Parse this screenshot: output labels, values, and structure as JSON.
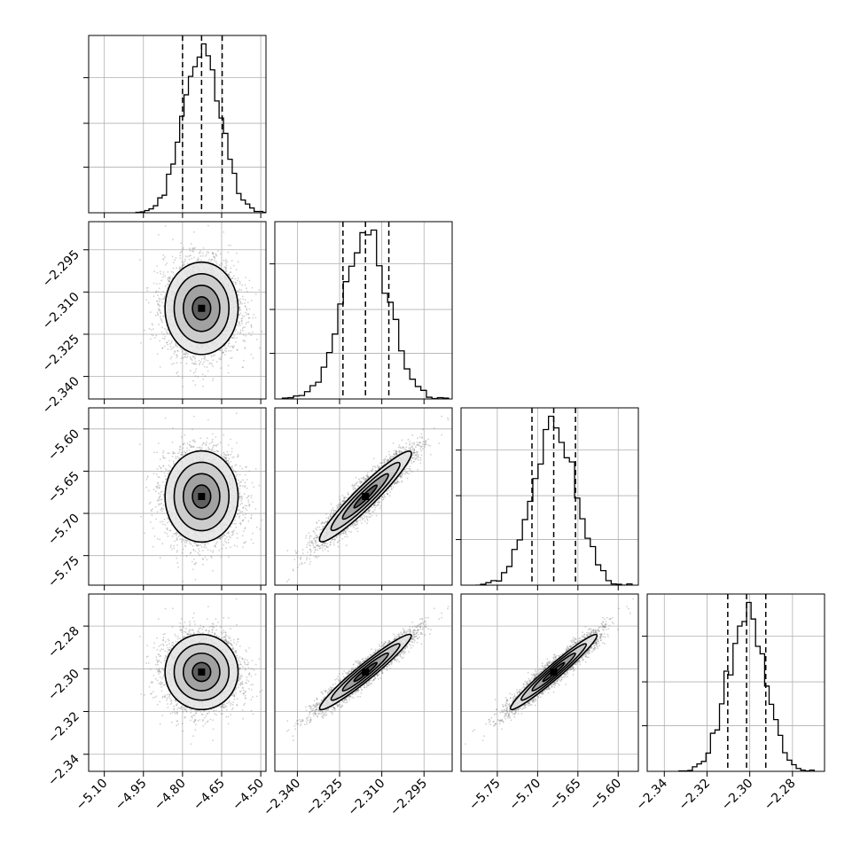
{
  "chart_data": {
    "type": "corner",
    "dims": 4,
    "grid": true,
    "axes": [
      {
        "range": [
          -5.16,
          -4.48
        ],
        "ticks": [
          -5.1,
          -4.95,
          -4.8,
          -4.65,
          -4.5
        ],
        "tick_labels": [
          "−5.10",
          "−4.95",
          "−4.80",
          "−4.65",
          "−4.50"
        ]
      },
      {
        "range": [
          -2.348,
          -2.285
        ],
        "ticks": [
          -2.34,
          -2.325,
          -2.31,
          -2.295
        ],
        "tick_labels": [
          "−2.340",
          "−2.325",
          "−2.310",
          "−2.295"
        ]
      },
      {
        "range": [
          -5.795,
          -5.575
        ],
        "ticks": [
          -5.75,
          -5.7,
          -5.65,
          -5.6
        ],
        "tick_labels": [
          "−5.75",
          "−5.70",
          "−5.65",
          "−5.60"
        ]
      },
      {
        "range": [
          -2.348,
          -2.265
        ],
        "ticks": [
          -2.34,
          -2.32,
          -2.3,
          -2.28
        ],
        "tick_labels": [
          "−2.34",
          "−2.32",
          "−2.30",
          "−2.28"
        ]
      }
    ],
    "row_tick_labels": [
      null,
      {
        "ticks": [
          -2.295,
          -2.31,
          -2.325,
          -2.34
        ],
        "tick_labels": [
          "−2.295",
          "−2.310",
          "−2.325",
          "−2.340"
        ],
        "range": [
          -2.348,
          -2.285
        ]
      },
      {
        "ticks": [
          -5.6,
          -5.65,
          -5.7,
          -5.75
        ],
        "tick_labels": [
          "−5.60",
          "−5.65",
          "−5.70",
          "−5.75"
        ],
        "range": [
          -5.785,
          -5.575
        ]
      },
      {
        "ticks": [
          -2.28,
          -2.3,
          -2.32,
          -2.34
        ],
        "tick_labels": [
          "−2.28",
          "−2.30",
          "−2.32",
          "−2.34"
        ],
        "range": [
          -2.348,
          -2.265
        ]
      }
    ],
    "marginals": [
      {
        "mean": -4.727,
        "sd": 0.07,
        "quantiles": [
          -4.8,
          -4.727,
          -4.648
        ],
        "bins": 30
      },
      {
        "mean": -2.3158,
        "sd": 0.0082,
        "quantiles": [
          -2.3238,
          -2.3158,
          -2.3075
        ],
        "bins": 30
      },
      {
        "mean": -5.68,
        "sd": 0.027,
        "quantiles": [
          -5.707,
          -5.68,
          -5.653
        ],
        "bins": 30
      },
      {
        "mean": -2.3015,
        "sd": 0.0088,
        "quantiles": [
          -2.3103,
          -2.3015,
          -2.2925
        ],
        "bins": 30
      }
    ],
    "correlations": {
      "1-0": 0.0,
      "2-0": 0.0,
      "3-0": 0.0,
      "2-1": 0.93,
      "3-1": 0.95,
      "3-2": 0.96
    },
    "contour_levels_sigma": [
      0.5,
      1.0,
      1.5,
      2.0
    ]
  }
}
